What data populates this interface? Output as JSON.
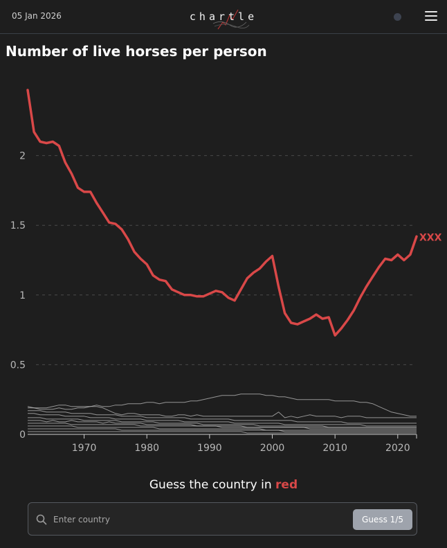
{
  "header": {
    "date": "05 Jan 2026",
    "logo_text": "chartle"
  },
  "page": {
    "title": "Number of live horses per person"
  },
  "prompt": {
    "text_before": "Guess the country in ",
    "highlight": "red"
  },
  "search": {
    "placeholder": "Enter country",
    "value": "",
    "button_label": "Guess 1/5"
  },
  "colors": {
    "highlight": "#d94848",
    "background_lines": "#bdbdbd",
    "button": "#9ea3ac"
  },
  "chart_data": {
    "type": "line",
    "title": "Number of live horses per person",
    "xlabel": "",
    "ylabel": "",
    "xlim": [
      1961,
      2023
    ],
    "ylim": [
      0,
      2.5
    ],
    "xticks": [
      1970,
      1980,
      1990,
      2000,
      2010,
      2020
    ],
    "yticks": [
      0,
      0.5,
      1,
      1.5,
      2
    ],
    "ytick_labels": [
      "0",
      "0.5",
      "1",
      "1.5",
      "2"
    ],
    "grid": "horizontal dashed",
    "highlight_series": {
      "name": "XXX",
      "color": "#d94848",
      "x": [
        1961,
        1962,
        1963,
        1964,
        1965,
        1966,
        1967,
        1968,
        1969,
        1970,
        1971,
        1972,
        1973,
        1974,
        1975,
        1976,
        1977,
        1978,
        1979,
        1980,
        1981,
        1982,
        1983,
        1984,
        1985,
        1986,
        1987,
        1988,
        1989,
        1990,
        1991,
        1992,
        1993,
        1994,
        1995,
        1996,
        1997,
        1998,
        1999,
        2000,
        2001,
        2002,
        2003,
        2004,
        2005,
        2006,
        2007,
        2008,
        2009,
        2010,
        2011,
        2012,
        2013,
        2014,
        2015,
        2016,
        2017,
        2018,
        2019,
        2020,
        2021,
        2022,
        2023
      ],
      "y": [
        2.47,
        2.17,
        2.1,
        2.09,
        2.1,
        2.07,
        1.95,
        1.87,
        1.77,
        1.74,
        1.74,
        1.66,
        1.59,
        1.52,
        1.51,
        1.47,
        1.4,
        1.31,
        1.26,
        1.22,
        1.14,
        1.11,
        1.1,
        1.04,
        1.02,
        1.0,
        1.0,
        0.99,
        0.99,
        1.01,
        1.03,
        1.02,
        0.98,
        0.96,
        1.04,
        1.12,
        1.16,
        1.19,
        1.24,
        1.28,
        1.06,
        0.87,
        0.8,
        0.79,
        0.81,
        0.83,
        0.86,
        0.83,
        0.84,
        0.71,
        0.76,
        0.82,
        0.89,
        0.98,
        1.06,
        1.13,
        1.2,
        1.26,
        1.25,
        1.29,
        1.25,
        1.29,
        1.42
      ]
    },
    "background_series": [
      {
        "y": [
          0.2,
          0.19,
          0.19,
          0.19,
          0.2,
          0.21,
          0.21,
          0.2,
          0.2,
          0.2,
          0.2,
          0.21,
          0.2,
          0.2,
          0.21,
          0.21,
          0.22,
          0.22,
          0.22,
          0.23,
          0.23,
          0.22,
          0.23,
          0.23,
          0.23,
          0.23,
          0.24,
          0.24,
          0.25,
          0.26,
          0.27,
          0.28,
          0.28,
          0.28,
          0.29,
          0.29,
          0.29,
          0.29,
          0.28,
          0.28,
          0.27,
          0.27,
          0.26,
          0.25,
          0.25,
          0.25,
          0.25,
          0.25,
          0.25,
          0.24,
          0.24,
          0.24,
          0.24,
          0.23,
          0.23,
          0.22,
          0.2,
          0.18,
          0.16,
          0.15,
          0.14,
          0.13,
          0.13
        ]
      },
      {
        "y": [
          0.19,
          0.19,
          0.18,
          0.18,
          0.18,
          0.19,
          0.18,
          0.18,
          0.19,
          0.19,
          0.2,
          0.2,
          0.19,
          0.17,
          0.15,
          0.14,
          0.15,
          0.15,
          0.14,
          0.14,
          0.14,
          0.14,
          0.13,
          0.13,
          0.14,
          0.14,
          0.13,
          0.14,
          0.13,
          0.13,
          0.13,
          0.13,
          0.13,
          0.13,
          0.13,
          0.13,
          0.13,
          0.13,
          0.13,
          0.13,
          0.16,
          0.12,
          0.13,
          0.12,
          0.13,
          0.14,
          0.13,
          0.13,
          0.13,
          0.13,
          0.12,
          0.13,
          0.13,
          0.13,
          0.12,
          0.12,
          0.12,
          0.12,
          0.12,
          0.12,
          0.12,
          0.12,
          0.12
        ]
      },
      {
        "y": [
          0.17,
          0.17,
          0.17,
          0.16,
          0.16,
          0.16,
          0.16,
          0.15,
          0.15,
          0.15,
          0.15,
          0.14,
          0.14,
          0.14,
          0.14,
          0.13,
          0.13,
          0.13,
          0.13,
          0.12,
          0.12,
          0.12,
          0.12,
          0.12,
          0.12,
          0.12,
          0.11,
          0.11,
          0.11,
          0.11,
          0.11,
          0.11,
          0.11,
          0.1,
          0.1,
          0.1,
          0.1,
          0.1,
          0.1,
          0.1,
          0.1,
          0.1,
          0.1,
          0.09,
          0.09,
          0.09,
          0.09,
          0.09,
          0.09,
          0.09,
          0.09,
          0.08,
          0.08,
          0.08,
          0.08,
          0.08,
          0.08,
          0.08,
          0.08,
          0.08,
          0.08,
          0.08,
          0.08
        ]
      },
      {
        "y": [
          0.15,
          0.15,
          0.14,
          0.14,
          0.14,
          0.14,
          0.13,
          0.13,
          0.13,
          0.13,
          0.12,
          0.12,
          0.12,
          0.12,
          0.11,
          0.11,
          0.11,
          0.11,
          0.11,
          0.1,
          0.1,
          0.1,
          0.1,
          0.1,
          0.1,
          0.09,
          0.09,
          0.09,
          0.09,
          0.09,
          0.09,
          0.09,
          0.09,
          0.08,
          0.08,
          0.08,
          0.08,
          0.08,
          0.08,
          0.08,
          0.08,
          0.07,
          0.07,
          0.07,
          0.07,
          0.07,
          0.07,
          0.07,
          0.07,
          0.07,
          0.07,
          0.07,
          0.07,
          0.07,
          0.06,
          0.06,
          0.06,
          0.06,
          0.06,
          0.06,
          0.06,
          0.06,
          0.06
        ]
      },
      {
        "y": [
          0.12,
          0.12,
          0.12,
          0.11,
          0.11,
          0.11,
          0.11,
          0.11,
          0.11,
          0.1,
          0.1,
          0.1,
          0.1,
          0.1,
          0.1,
          0.09,
          0.09,
          0.09,
          0.09,
          0.09,
          0.09,
          0.08,
          0.08,
          0.08,
          0.08,
          0.08,
          0.08,
          0.08,
          0.07,
          0.07,
          0.07,
          0.07,
          0.07,
          0.07,
          0.07,
          0.07,
          0.07,
          0.06,
          0.06,
          0.06,
          0.06,
          0.06,
          0.06,
          0.06,
          0.06,
          0.06,
          0.06,
          0.06,
          0.05,
          0.05,
          0.05,
          0.05,
          0.05,
          0.05,
          0.05,
          0.05,
          0.05,
          0.05,
          0.05,
          0.05,
          0.05,
          0.05,
          0.05
        ]
      },
      {
        "y": [
          0.1,
          0.1,
          0.1,
          0.09,
          0.1,
          0.09,
          0.09,
          0.1,
          0.09,
          0.09,
          0.09,
          0.09,
          0.08,
          0.09,
          0.08,
          0.08,
          0.08,
          0.08,
          0.08,
          0.07,
          0.07,
          0.07,
          0.07,
          0.07,
          0.07,
          0.07,
          0.07,
          0.06,
          0.06,
          0.06,
          0.06,
          0.06,
          0.06,
          0.06,
          0.06,
          0.05,
          0.05,
          0.05,
          0.05,
          0.05,
          0.05,
          0.05,
          0.05,
          0.05,
          0.05,
          0.04,
          0.04,
          0.04,
          0.04,
          0.04,
          0.04,
          0.04,
          0.04,
          0.04,
          0.04,
          0.04,
          0.04,
          0.04,
          0.04,
          0.04,
          0.04,
          0.04,
          0.04
        ]
      },
      {
        "y": [
          0.08,
          0.08,
          0.08,
          0.08,
          0.08,
          0.08,
          0.08,
          0.07,
          0.07,
          0.07,
          0.07,
          0.07,
          0.07,
          0.07,
          0.07,
          0.07,
          0.07,
          0.07,
          0.06,
          0.06,
          0.06,
          0.06,
          0.06,
          0.06,
          0.06,
          0.06,
          0.06,
          0.06,
          0.06,
          0.06,
          0.06,
          0.05,
          0.05,
          0.05,
          0.05,
          0.05,
          0.05,
          0.05,
          0.05,
          0.05,
          0.05,
          0.05,
          0.05,
          0.05,
          0.05,
          0.05,
          0.05,
          0.05,
          0.05,
          0.05,
          0.05,
          0.05,
          0.05,
          0.05,
          0.05,
          0.05,
          0.05,
          0.05,
          0.05,
          0.05,
          0.05,
          0.05,
          0.05
        ]
      },
      {
        "y": [
          0.06,
          0.06,
          0.06,
          0.06,
          0.06,
          0.06,
          0.06,
          0.06,
          0.05,
          0.05,
          0.05,
          0.05,
          0.05,
          0.05,
          0.05,
          0.05,
          0.05,
          0.05,
          0.05,
          0.05,
          0.05,
          0.04,
          0.04,
          0.04,
          0.04,
          0.04,
          0.04,
          0.04,
          0.04,
          0.04,
          0.04,
          0.04,
          0.04,
          0.04,
          0.04,
          0.04,
          0.04,
          0.04,
          0.03,
          0.03,
          0.03,
          0.03,
          0.03,
          0.03,
          0.03,
          0.03,
          0.03,
          0.03,
          0.03,
          0.03,
          0.03,
          0.03,
          0.03,
          0.03,
          0.03,
          0.03,
          0.03,
          0.03,
          0.03,
          0.03,
          0.03,
          0.03,
          0.03
        ]
      },
      {
        "y": [
          0.04,
          0.04,
          0.04,
          0.04,
          0.04,
          0.04,
          0.04,
          0.04,
          0.04,
          0.04,
          0.04,
          0.04,
          0.04,
          0.04,
          0.04,
          0.03,
          0.03,
          0.03,
          0.03,
          0.03,
          0.03,
          0.03,
          0.03,
          0.03,
          0.03,
          0.03,
          0.03,
          0.03,
          0.03,
          0.03,
          0.03,
          0.03,
          0.03,
          0.03,
          0.03,
          0.03,
          0.03,
          0.03,
          0.03,
          0.03,
          0.03,
          0.02,
          0.02,
          0.02,
          0.02,
          0.02,
          0.02,
          0.02,
          0.02,
          0.02,
          0.02,
          0.02,
          0.02,
          0.02,
          0.02,
          0.02,
          0.02,
          0.02,
          0.02,
          0.02,
          0.02,
          0.02,
          0.02
        ]
      },
      {
        "y": [
          0.02,
          0.02,
          0.02,
          0.02,
          0.02,
          0.02,
          0.02,
          0.02,
          0.02,
          0.02,
          0.02,
          0.02,
          0.02,
          0.02,
          0.02,
          0.02,
          0.02,
          0.02,
          0.02,
          0.02,
          0.02,
          0.02,
          0.02,
          0.02,
          0.02,
          0.02,
          0.02,
          0.02,
          0.02,
          0.02,
          0.02,
          0.02,
          0.02,
          0.02,
          0.02,
          0.01,
          0.01,
          0.01,
          0.01,
          0.01,
          0.01,
          0.01,
          0.01,
          0.01,
          0.01,
          0.01,
          0.01,
          0.01,
          0.01,
          0.01,
          0.01,
          0.01,
          0.01,
          0.01,
          0.01,
          0.01,
          0.01,
          0.01,
          0.01,
          0.01,
          0.01,
          0.01,
          0.01
        ]
      }
    ]
  }
}
